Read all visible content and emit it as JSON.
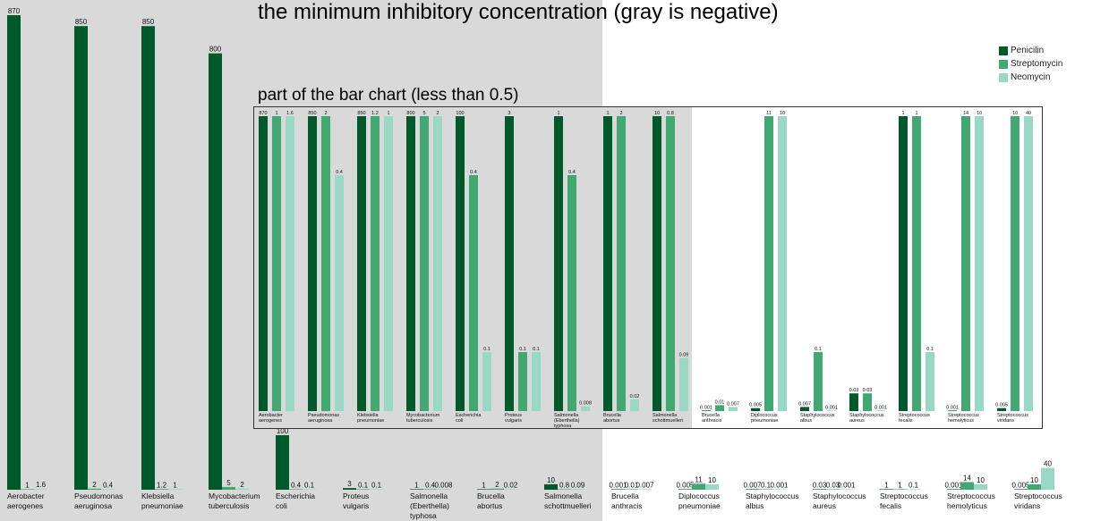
{
  "chart_data": {
    "type": "bar",
    "title": "the minimum inhibitory concentration (gray is negative)",
    "inset_title": "part of the bar chart (less than 0.5)",
    "categories": [
      "Aerobacter aerogenes",
      "Pseudomonas aeruginosa",
      "Klebsiella pneumoniae",
      "Mycobacterium tuberculosis",
      "Escherichia coli",
      "Proteus vulgaris",
      "Salmonella (Eberthella) typhosa",
      "Brucella abortus",
      "Salmonella schottmuelleri",
      "Brucella anthracis",
      "Diplococcus pneumoniae",
      "Staphylococcus albus",
      "Staphylococcus aureus",
      "Streptococcus fecalis",
      "Streptococcus hemolyticus",
      "Streptococcus viridans"
    ],
    "main_labels": [
      [
        "Aerobacter",
        "aerogenes"
      ],
      [
        "Pseudomonas",
        "aeruginosa"
      ],
      [
        "Klebsiella",
        "pneumoniae"
      ],
      [
        "Mycobacterium",
        "tuberculosis"
      ],
      [
        "Escherichia",
        "coli"
      ],
      [
        "Proteus",
        "vulgaris"
      ],
      [
        "Salmonella",
        "(Eberthella)",
        "typhosa"
      ],
      [
        "Brucella",
        "abortus"
      ],
      [
        "Salmonella",
        "schottmuelleri"
      ],
      [
        "Brucella",
        "anthracis"
      ],
      [
        "Diplococcus",
        "pneumoniae"
      ],
      [
        "Staphylococcus",
        "albus"
      ],
      [
        "Staphylococcus",
        "aureus"
      ],
      [
        "Streptococcus",
        "fecalis"
      ],
      [
        "Streptococcus",
        "hemolyticus"
      ],
      [
        "Streptococcus",
        "viridans"
      ]
    ],
    "gram_negative_count": 9,
    "series": [
      {
        "name": "Penicilin",
        "color": "#00592a",
        "values": [
          870,
          850,
          850,
          800,
          100,
          3,
          1,
          1,
          10,
          0.001,
          0.005,
          0.007,
          0.03,
          1,
          0.001,
          0.005
        ]
      },
      {
        "name": "Streptomycin",
        "color": "#41a872",
        "values": [
          1,
          2,
          1.2,
          5,
          0.4,
          0.1,
          0.4,
          2,
          0.8,
          0.01,
          11,
          0.1,
          0.03,
          1,
          14,
          10
        ]
      },
      {
        "name": "Neomycin",
        "color": "#9ad8c6",
        "values": [
          1.6,
          0.4,
          1,
          2,
          0.1,
          0.1,
          0.008,
          0.02,
          0.09,
          0.007,
          10,
          0.001,
          0.001,
          0.1,
          10,
          40
        ]
      }
    ],
    "main_value_labels": [
      [
        "870",
        "1",
        "1.6"
      ],
      [
        "850",
        "2",
        "0.4"
      ],
      [
        "850",
        "1.2",
        "1"
      ],
      [
        "800",
        "5",
        "2"
      ],
      [
        "100",
        "0.4",
        "0.1"
      ],
      [
        "3",
        "0.1",
        "0.1"
      ],
      [
        "1",
        "0.4",
        "0.008"
      ],
      [
        "1",
        "2",
        "0.02"
      ],
      [
        "10",
        "0.8",
        "0.09"
      ],
      [
        "0.001",
        "0.01",
        "0.007"
      ],
      [
        "0.005",
        "11",
        "10"
      ],
      [
        "0.007",
        "0.1",
        "0.001"
      ],
      [
        "0.03",
        "0.03",
        "0.001"
      ],
      [
        "1",
        "1",
        "0.1"
      ],
      [
        "0.001",
        "14",
        "10"
      ],
      [
        "0.005",
        "10",
        "40"
      ]
    ],
    "ylim": [
      0,
      870
    ],
    "inset_ylim": [
      0,
      0.5
    ],
    "legend_position": "top-right",
    "grid": false
  }
}
